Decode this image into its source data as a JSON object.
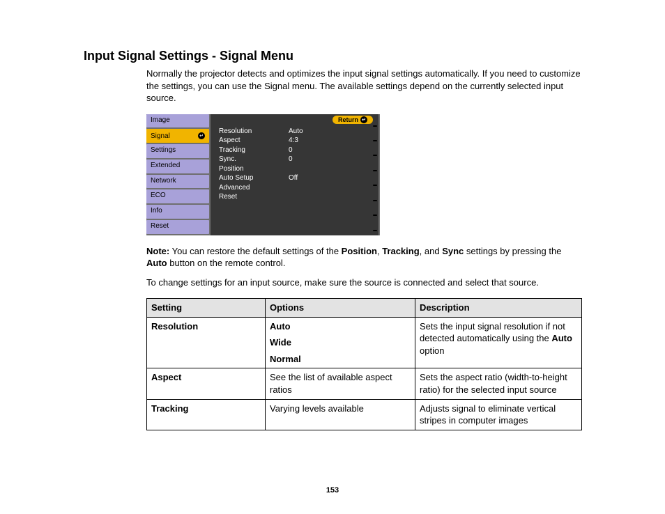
{
  "title": "Input Signal Settings - Signal Menu",
  "intro": "Normally the projector detects and optimizes the input signal settings automatically. If you need to customize the settings, you can use the Signal menu. The available settings depend on the currently selected input source.",
  "menu": {
    "items": [
      "Image",
      "Signal",
      "Settings",
      "Extended",
      "Network",
      "ECO",
      "Info",
      "Reset"
    ],
    "selected": "Signal",
    "return_label": "Return",
    "panel_rows": [
      {
        "label": "Resolution",
        "value": "Auto"
      },
      {
        "label": "Aspect",
        "value": "4:3"
      },
      {
        "label": "Tracking",
        "value": "0"
      },
      {
        "label": "Sync.",
        "value": "0"
      },
      {
        "label": "Position",
        "value": ""
      },
      {
        "label": "Auto Setup",
        "value": "Off"
      },
      {
        "label": "Advanced",
        "value": ""
      },
      {
        "label": "Reset",
        "value": ""
      }
    ]
  },
  "note": {
    "prefix": "Note:",
    "t1": " You can restore the default settings of the ",
    "b1": "Position",
    "t2": ", ",
    "b2": "Tracking",
    "t3": ", and ",
    "b3": "Sync",
    "t4": " settings by pressing the ",
    "b4": "Auto",
    "t5": " button on the remote control."
  },
  "para2": "To change settings for an input source, make sure the source is connected and select that source.",
  "table": {
    "headers": [
      "Setting",
      "Options",
      "Description"
    ],
    "rows": [
      {
        "setting": "Resolution",
        "options_bold": [
          "Auto",
          "Wide",
          "Normal"
        ],
        "options_plain": "",
        "desc_pre": "Sets the input signal resolution if not detected automatically using the ",
        "desc_bold": "Auto",
        "desc_post": " option"
      },
      {
        "setting": "Aspect",
        "options_bold": [],
        "options_plain": "See the list of available aspect ratios",
        "desc_pre": "Sets the aspect ratio (width-to-height ratio) for the selected input source",
        "desc_bold": "",
        "desc_post": ""
      },
      {
        "setting": "Tracking",
        "options_bold": [],
        "options_plain": "Varying levels available",
        "desc_pre": "Adjusts signal to eliminate vertical stripes in computer images",
        "desc_bold": "",
        "desc_post": ""
      }
    ]
  },
  "page_number": "153",
  "colors": {
    "menu_bg": "#a8a1d9",
    "menu_sel": "#f1b400",
    "panel_bg": "#363636",
    "outer_bg": "#6f6f6f",
    "table_header_bg": "#e3e3e3"
  }
}
